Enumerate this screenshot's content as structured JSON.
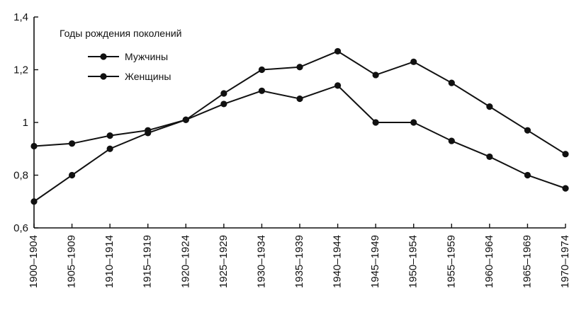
{
  "chart_data": {
    "type": "line",
    "title": "",
    "xlabel": "",
    "ylabel": "",
    "categories": [
      "1900–1904",
      "1905–1909",
      "1910–1914",
      "1915–1919",
      "1920–1924",
      "1925–1929",
      "1930–1934",
      "1935–1939",
      "1940–1944",
      "1945–1949",
      "1950–1954",
      "1955–1959",
      "1960–1964",
      "1965–1969",
      "1970–1974"
    ],
    "ylim": [
      0.6,
      1.4
    ],
    "yticks": [
      "0,6",
      "0,8",
      "1",
      "1,2",
      "1,4"
    ],
    "ytick_values": [
      0.6,
      0.8,
      1.0,
      1.2,
      1.4
    ],
    "grid": false,
    "legend": {
      "title": "Годы рождения поколений",
      "placement": "top-left"
    },
    "series": [
      {
        "name": "Мужчины",
        "values": [
          0.7,
          0.8,
          0.9,
          0.96,
          1.01,
          1.11,
          1.2,
          1.21,
          1.27,
          1.18,
          1.23,
          1.15,
          1.06,
          0.97,
          0.88
        ]
      },
      {
        "name": "Женщины",
        "values": [
          0.91,
          0.92,
          0.95,
          0.97,
          1.01,
          1.07,
          1.12,
          1.09,
          1.14,
          1.0,
          1.0,
          0.93,
          0.87,
          0.8,
          0.75
        ]
      }
    ],
    "colors": {
      "line": "#111111",
      "axis": "#111111"
    }
  }
}
